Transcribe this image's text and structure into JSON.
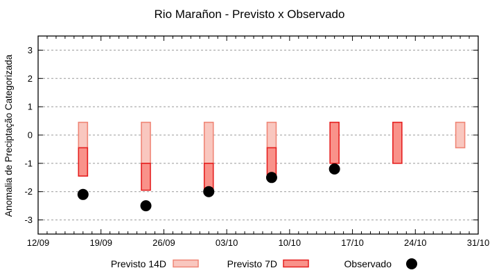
{
  "chart_data": {
    "type": "bar",
    "subtype": "forecast-range-boxes-with-observed-points",
    "title": "Rio Marañon - Previsto x Observado",
    "xlabel": "",
    "ylabel": "Anomalia de Preciptação Categorizada",
    "ylim": [
      -3.5,
      3.5
    ],
    "yticks": [
      -3,
      -2,
      -1,
      0,
      1,
      2,
      3
    ],
    "x_major_ticks": [
      "12/09",
      "19/09",
      "26/09",
      "03/10",
      "10/10",
      "17/10",
      "24/10",
      "31/10"
    ],
    "x_total_days": 49,
    "x_major_interval_days": 7,
    "x_minor_interval_days": 1,
    "grid": "horizontal dashed at integer y values",
    "legend_position": "bottom-center",
    "background_color": "#ffffff",
    "series": [
      {
        "id": "previsto-14d",
        "name": "Previsto 14D",
        "style": "box",
        "fill": "#f9c7bf",
        "stroke": "#ef8576",
        "points": [
          {
            "date": "17/09",
            "day": 5,
            "high": 0.45,
            "low": -1.45
          },
          {
            "date": "24/09",
            "day": 12,
            "high": 0.45,
            "low": -1.0
          },
          {
            "date": "01/10",
            "day": 19,
            "high": 0.45,
            "low": -1.0
          },
          {
            "date": "08/10",
            "day": 26,
            "high": 0.45,
            "low": -0.45
          },
          {
            "date": "29/10",
            "day": 47,
            "high": 0.45,
            "low": -0.45
          }
        ]
      },
      {
        "id": "previsto-7d",
        "name": "Previsto 7D",
        "style": "box",
        "fill": "#f9928a",
        "stroke": "#e51f1f",
        "points": [
          {
            "date": "17/09",
            "day": 5,
            "high": -0.45,
            "low": -1.45
          },
          {
            "date": "24/09",
            "day": 12,
            "high": -1.0,
            "low": -1.95
          },
          {
            "date": "01/10",
            "day": 19,
            "high": -1.0,
            "low": -1.95
          },
          {
            "date": "08/10",
            "day": 26,
            "high": -0.45,
            "low": -1.45
          },
          {
            "date": "15/10",
            "day": 33,
            "high": 0.45,
            "low": -1.0
          },
          {
            "date": "22/10",
            "day": 40,
            "high": 0.45,
            "low": -1.0
          }
        ]
      },
      {
        "id": "observado",
        "name": "Observado",
        "style": "dot",
        "fill": "#000000",
        "points": [
          {
            "date": "17/09",
            "day": 5,
            "value": -2.1
          },
          {
            "date": "24/09",
            "day": 12,
            "value": -2.5
          },
          {
            "date": "01/10",
            "day": 19,
            "value": -2.0
          },
          {
            "date": "08/10",
            "day": 26,
            "value": -1.5
          },
          {
            "date": "15/10",
            "day": 33,
            "value": -1.2
          }
        ]
      }
    ]
  }
}
